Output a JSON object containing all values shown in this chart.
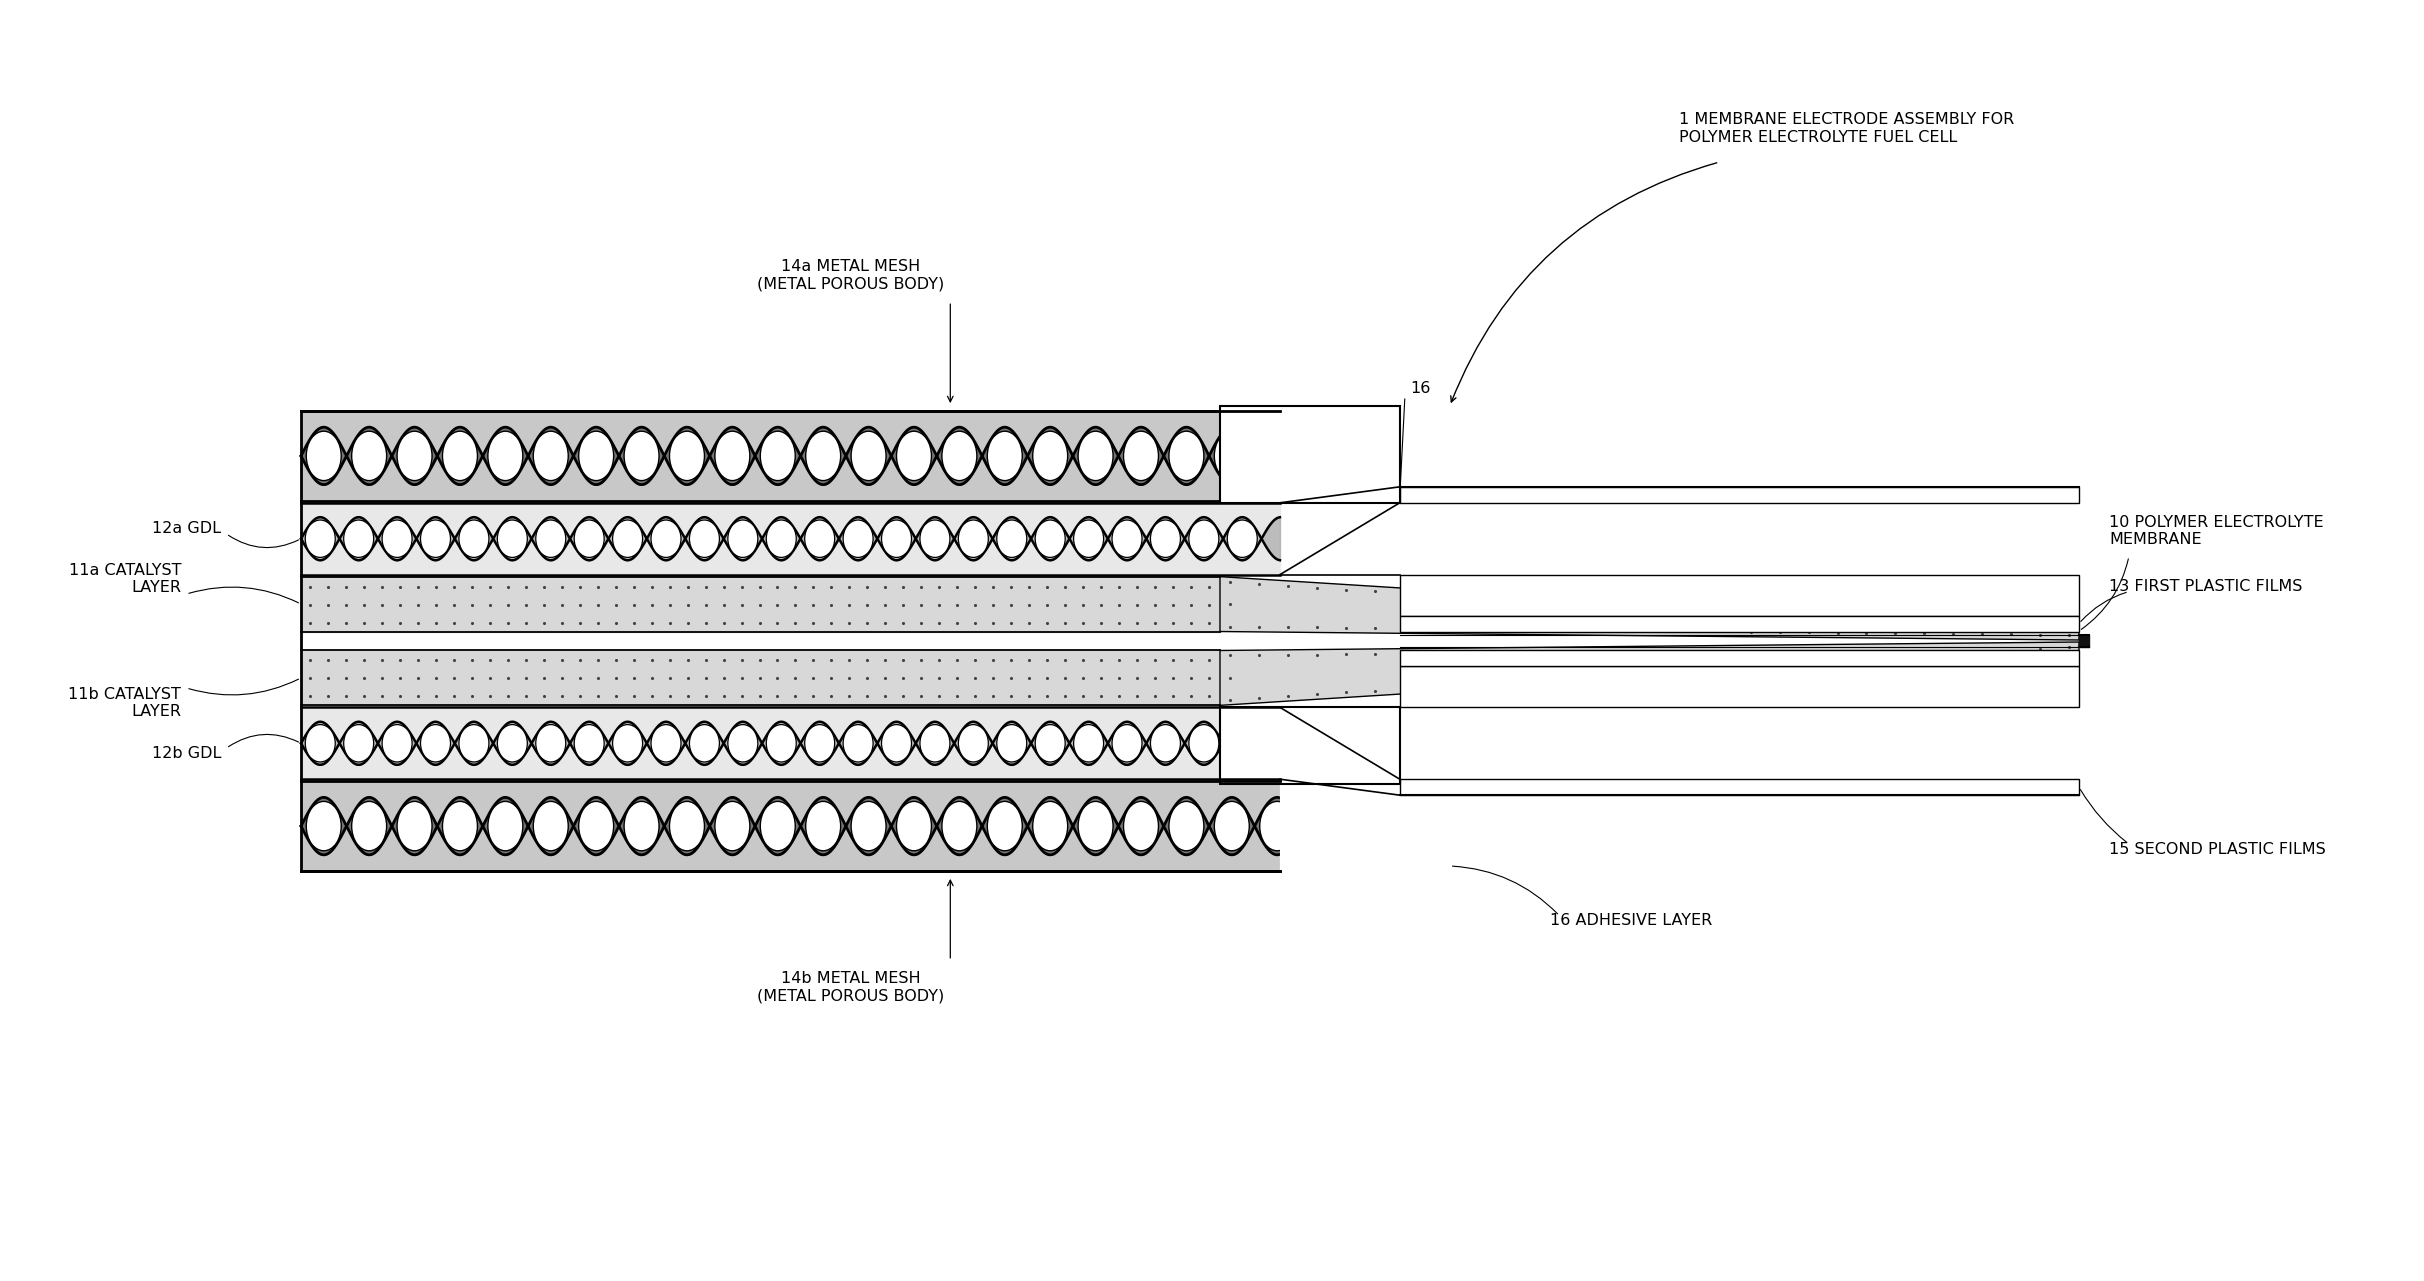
{
  "bg_color": "#ffffff",
  "fig_width": 24.24,
  "fig_height": 12.81,
  "labels": {
    "title_label": "1 MEMBRANE ELECTRODE ASSEMBLY FOR\nPOLYMER ELECTROLYTE FUEL CELL",
    "label_14a": "14a METAL MESH\n(METAL POROUS BODY)",
    "label_14b": "14b METAL MESH\n(METAL POROUS BODY)",
    "label_12a": "12a GDL",
    "label_12b": "12b GDL",
    "label_11a": "11a CATALYST\nLAYER",
    "label_11b": "11b CATALYST\nLAYER",
    "label_16": "16",
    "label_10": "10 POLYMER ELECTROLYTE\nMEMBRANE",
    "label_13": "13 FIRST PLASTIC FILMS",
    "label_15": "15 SECOND PLASTIC FILMS",
    "label_16_bot": "16 ADHESIVE LAYER"
  },
  "fontsize": 11.5
}
